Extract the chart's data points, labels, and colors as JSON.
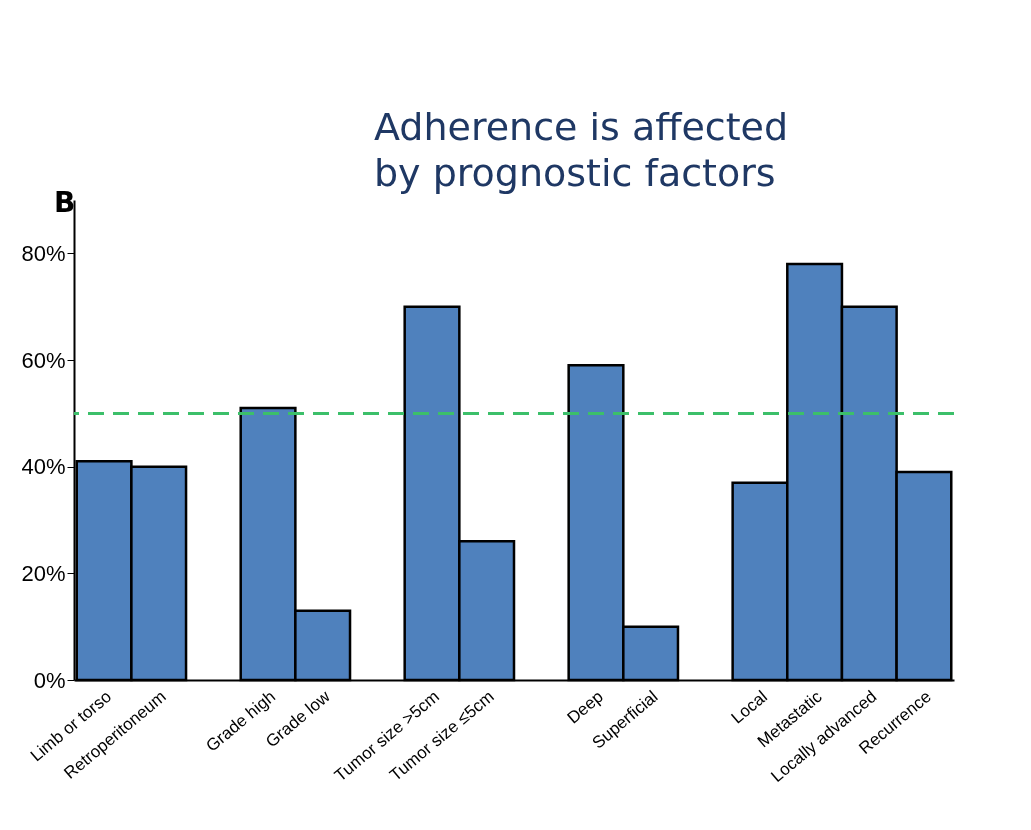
{
  "chart_data": {
    "type": "bar",
    "categories": [
      "Limb or torso",
      "Retroperitoneum",
      null,
      "Grade high",
      "Grade low",
      null,
      "Tumor size >5cm",
      "Tumor size ≤5cm",
      null,
      "Deep",
      "Superficial",
      null,
      "Local",
      "Metastatic",
      "Locally advanced",
      "Recurrence"
    ],
    "values": [
      41,
      40,
      null,
      51,
      13,
      null,
      70,
      26,
      null,
      59,
      10,
      null,
      37,
      78,
      70,
      39
    ],
    "color": "#4f81bd",
    "ylim": [
      0,
      90
    ],
    "yticks": [
      {
        "value": 0,
        "label": "0%"
      },
      {
        "value": 20,
        "label": "20%"
      },
      {
        "value": 40,
        "label": "40%"
      },
      {
        "value": 60,
        "label": "60%"
      },
      {
        "value": 80,
        "label": "80%"
      }
    ],
    "grid": false,
    "ref_lines": [
      {
        "axis": "y",
        "value": 50,
        "color": "#3cbf6a",
        "line_style": "dashed"
      }
    ],
    "annotations": [
      "B",
      "Adherence is affected by prognostic factors"
    ]
  }
}
